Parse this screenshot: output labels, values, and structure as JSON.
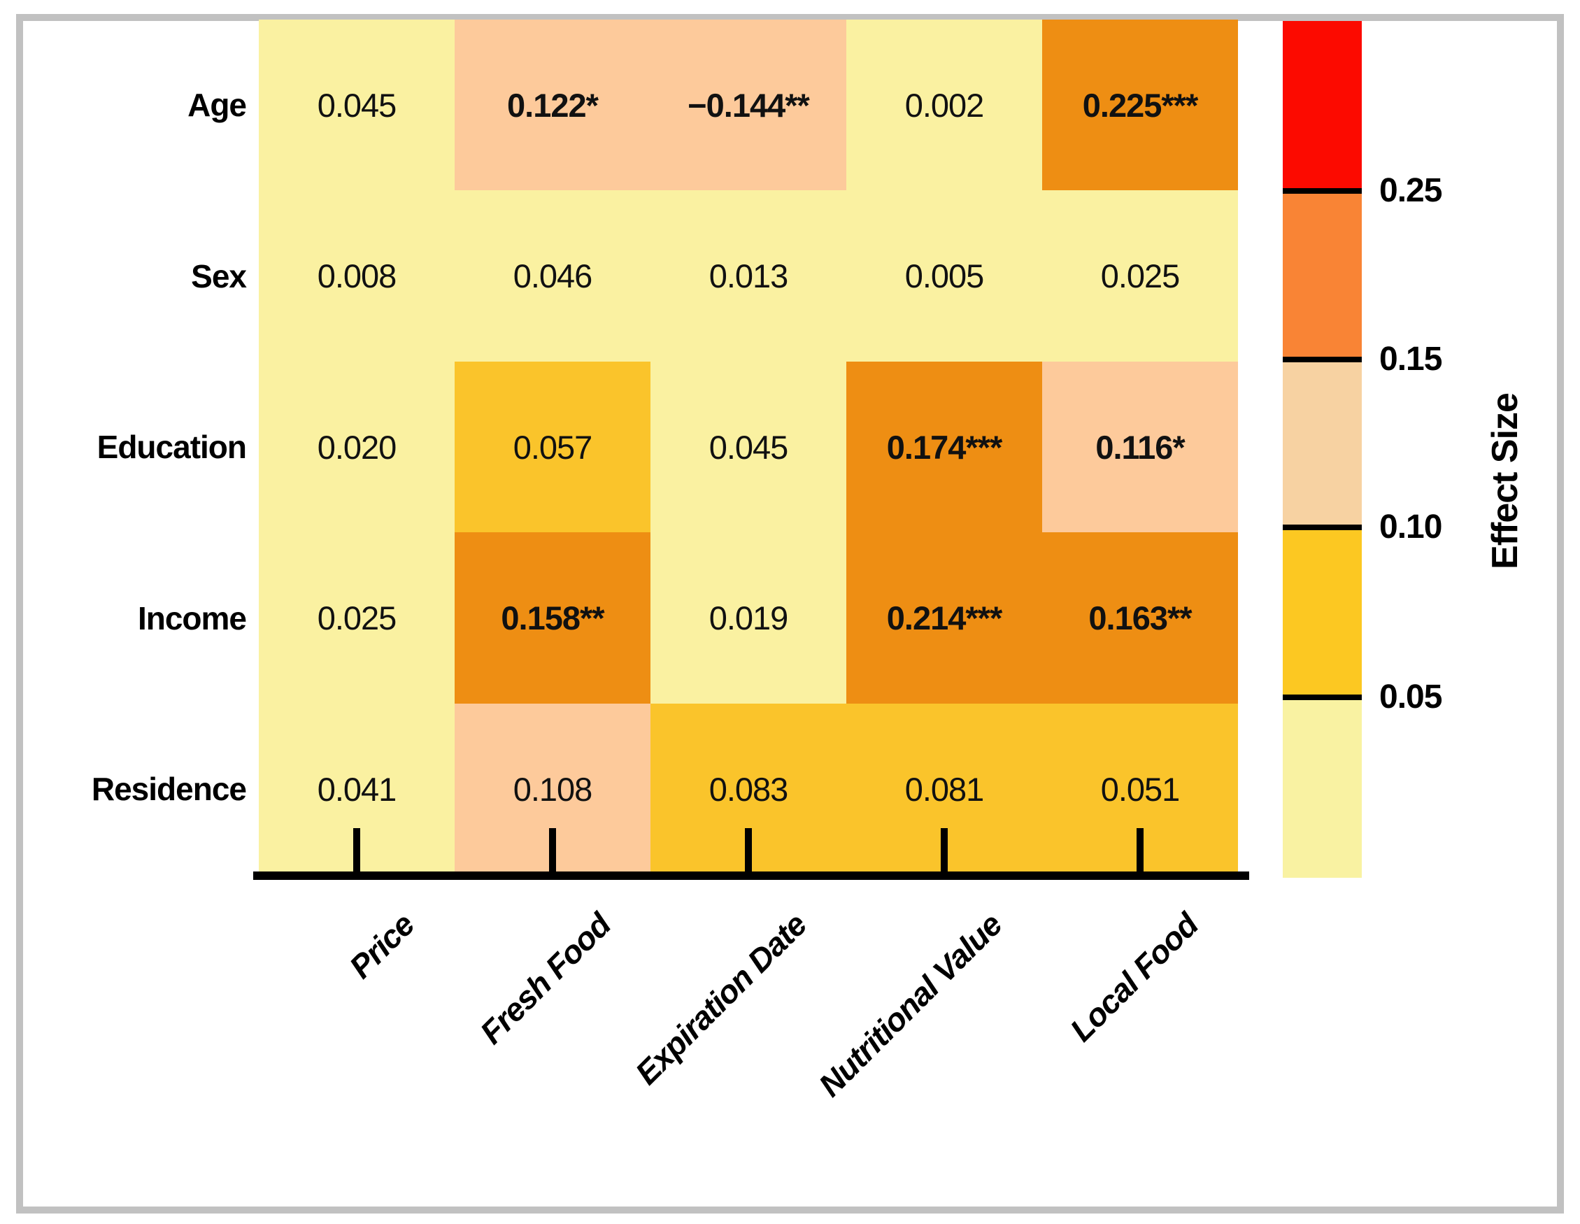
{
  "chart_data": {
    "type": "heatmap",
    "rows": [
      "Age",
      "Sex",
      "Education",
      "Income",
      "Residence"
    ],
    "columns": [
      "Price",
      "Fresh Food",
      "Expiration Date",
      "Nutritional Value",
      "Local Food"
    ],
    "values": [
      [
        0.045,
        0.122,
        -0.144,
        0.002,
        0.225
      ],
      [
        0.008,
        0.046,
        0.013,
        0.005,
        0.025
      ],
      [
        0.02,
        0.057,
        0.045,
        0.174,
        0.116
      ],
      [
        0.025,
        0.158,
        0.019,
        0.214,
        0.163
      ],
      [
        0.041,
        0.108,
        0.083,
        0.081,
        0.051
      ]
    ],
    "significance": [
      [
        "",
        "*",
        "**",
        "",
        "***"
      ],
      [
        "",
        "",
        "",
        "",
        ""
      ],
      [
        "",
        "",
        "",
        "***",
        "*"
      ],
      [
        "",
        "**",
        "",
        "***",
        "**"
      ],
      [
        "",
        "",
        "",
        "",
        ""
      ]
    ],
    "cells": [
      [
        {
          "label": "0.045",
          "bold": false,
          "bin": "lt_0.05"
        },
        {
          "label": "0.122*",
          "bold": true,
          "bin": "0.10_0.15"
        },
        {
          "label": "−0.144**",
          "bold": true,
          "bin": "0.10_0.15"
        },
        {
          "label": "0.002",
          "bold": false,
          "bin": "lt_0.05"
        },
        {
          "label": "0.225***",
          "bold": true,
          "bin": "0.15_0.25"
        }
      ],
      [
        {
          "label": "0.008",
          "bold": false,
          "bin": "lt_0.05"
        },
        {
          "label": "0.046",
          "bold": false,
          "bin": "lt_0.05"
        },
        {
          "label": "0.013",
          "bold": false,
          "bin": "lt_0.05"
        },
        {
          "label": "0.005",
          "bold": false,
          "bin": "lt_0.05"
        },
        {
          "label": "0.025",
          "bold": false,
          "bin": "lt_0.05"
        }
      ],
      [
        {
          "label": "0.020",
          "bold": false,
          "bin": "lt_0.05"
        },
        {
          "label": "0.057",
          "bold": false,
          "bin": "0.05_0.10"
        },
        {
          "label": "0.045",
          "bold": false,
          "bin": "lt_0.05"
        },
        {
          "label": "0.174***",
          "bold": true,
          "bin": "0.15_0.25"
        },
        {
          "label": "0.116*",
          "bold": true,
          "bin": "0.10_0.15"
        }
      ],
      [
        {
          "label": "0.025",
          "bold": false,
          "bin": "lt_0.05"
        },
        {
          "label": "0.158**",
          "bold": true,
          "bin": "0.15_0.25"
        },
        {
          "label": "0.019",
          "bold": false,
          "bin": "lt_0.05"
        },
        {
          "label": "0.214***",
          "bold": true,
          "bin": "0.15_0.25"
        },
        {
          "label": "0.163**",
          "bold": true,
          "bin": "0.15_0.25"
        }
      ],
      [
        {
          "label": "0.041",
          "bold": false,
          "bin": "lt_0.05"
        },
        {
          "label": "0.108",
          "bold": false,
          "bin": "0.10_0.15"
        },
        {
          "label": "0.083",
          "bold": false,
          "bin": "0.05_0.10"
        },
        {
          "label": "0.081",
          "bold": false,
          "bin": "0.05_0.10"
        },
        {
          "label": "0.051",
          "bold": false,
          "bin": "0.05_0.10"
        }
      ]
    ],
    "cell_colors": {
      "lt_0.05": "#FAF1A1",
      "0.05_0.10": "#FAC42B",
      "0.10_0.15": "#FDCA9B",
      "0.15_0.25": "#EE8E13",
      "gt_0.25": "#FC0A00"
    },
    "colorbar": {
      "title": "Effect Size",
      "tick_labels": [
        "0.25",
        "0.15",
        "0.10",
        "0.05"
      ],
      "segments_top_to_bottom": [
        {
          "bin": "gt_0.25",
          "color": "#FC0A00"
        },
        {
          "bin": "0.15_0.25",
          "color": "#F98435"
        },
        {
          "bin": "0.10_0.15",
          "color": "#F7D2A2"
        },
        {
          "bin": "0.05_0.10",
          "color": "#FCC822"
        },
        {
          "bin": "lt_0.05",
          "color": "#F9F2A2"
        }
      ],
      "legend_position": "right"
    },
    "grid": false,
    "frame_color": "#C1C1C1",
    "axis_color": "#000000"
  }
}
